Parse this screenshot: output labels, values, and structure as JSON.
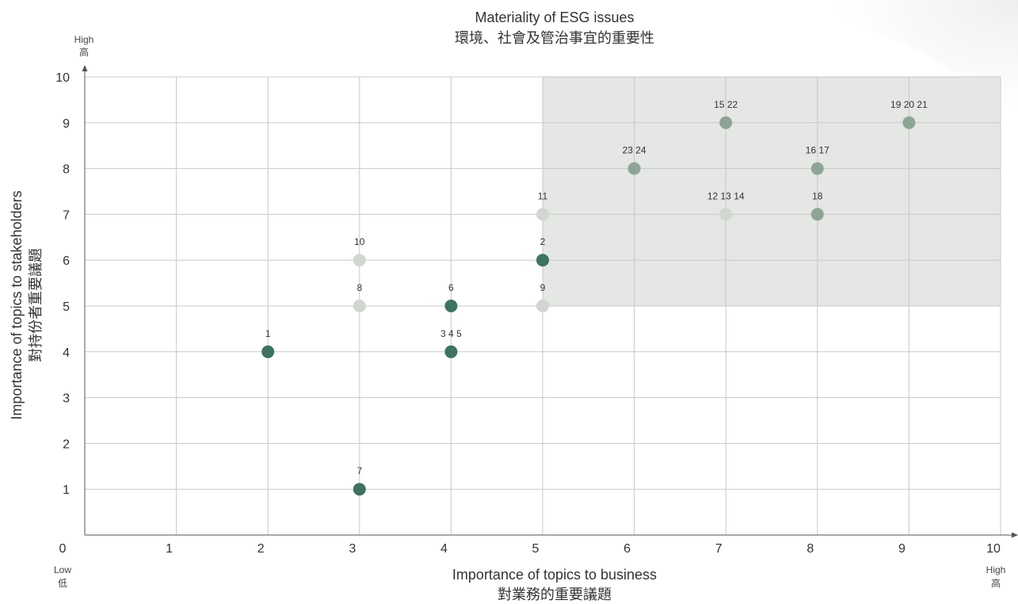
{
  "chart_data": {
    "type": "scatter",
    "title": "Materiality of ESG issues",
    "subtitle": "環境、社會及管治事宜的重要性",
    "xlabel": "Importance of topics to business",
    "xlabel_zh": "對業務的重要議題",
    "ylabel": "Importance of topics to stakeholders",
    "ylabel_zh": "對持份者重要議題",
    "xlim": [
      0,
      10
    ],
    "ylim": [
      0,
      10
    ],
    "xticks": [
      "0",
      "1",
      "2",
      "3",
      "4",
      "5",
      "6",
      "7",
      "8",
      "9",
      "10"
    ],
    "yticks": [
      "1",
      "2",
      "3",
      "4",
      "5",
      "6",
      "7",
      "8",
      "9",
      "10"
    ],
    "x_low": "Low",
    "x_low_zh": "低",
    "x_high": "High",
    "x_high_zh": "高",
    "y_high": "High",
    "y_high_zh": "高",
    "grid": true,
    "highlight_region": {
      "x": [
        5,
        10
      ],
      "y": [
        5,
        10
      ],
      "color": "#e4e7e3"
    },
    "points": [
      {
        "label": "1",
        "x": 2,
        "y": 4,
        "color": "#3d7360"
      },
      {
        "label": "2",
        "x": 5,
        "y": 6,
        "color": "#3d7360"
      },
      {
        "label": "3 4 5",
        "x": 4,
        "y": 4,
        "color": "#3d7360"
      },
      {
        "label": "6",
        "x": 4,
        "y": 5,
        "color": "#3d7360"
      },
      {
        "label": "7",
        "x": 3,
        "y": 1,
        "color": "#3d7360"
      },
      {
        "label": "8",
        "x": 3,
        "y": 5,
        "color": "#d1d6d1"
      },
      {
        "label": "9",
        "x": 5,
        "y": 5,
        "color": "#d1d6d1"
      },
      {
        "label": "10",
        "x": 3,
        "y": 6,
        "color": "#d1d6d1"
      },
      {
        "label": "11",
        "x": 5,
        "y": 7,
        "color": "#d1d6d1"
      },
      {
        "label": "12 13 14",
        "x": 7,
        "y": 7,
        "color": "#d1d6d1"
      },
      {
        "label": "15 22",
        "x": 7,
        "y": 9,
        "color": "#8ea596"
      },
      {
        "label": "16 17",
        "x": 8,
        "y": 8,
        "color": "#8ea596"
      },
      {
        "label": "18",
        "x": 8,
        "y": 7,
        "color": "#8ea596"
      },
      {
        "label": "19 20 21",
        "x": 9,
        "y": 9,
        "color": "#8ea596"
      },
      {
        "label": "23 24",
        "x": 6,
        "y": 8,
        "color": "#8ea596"
      }
    ]
  }
}
